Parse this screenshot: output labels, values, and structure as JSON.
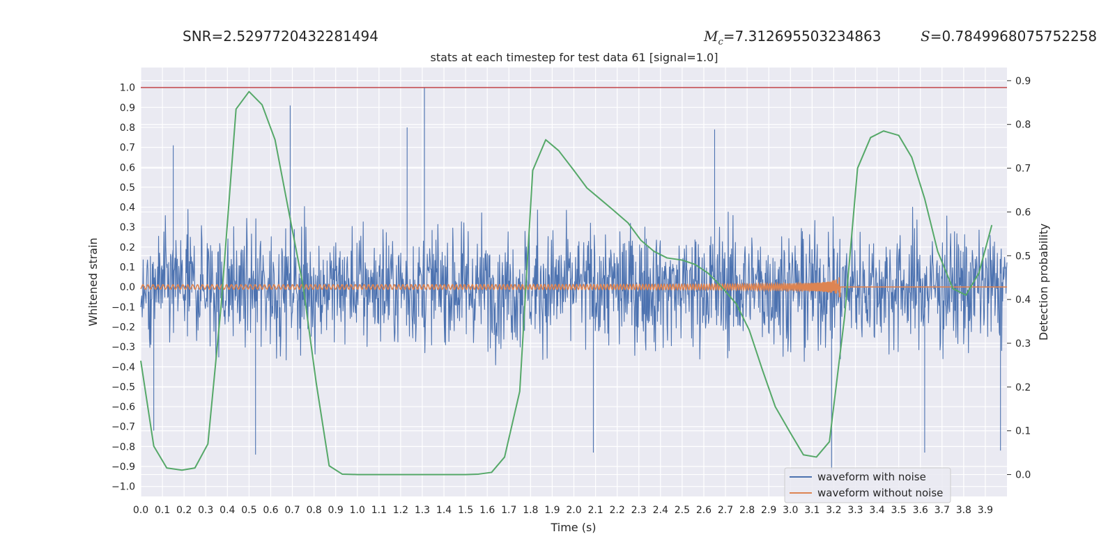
{
  "header": {
    "snr": "SNR=2.5297720432281494",
    "mc_value": "=7.312695503234863",
    "s_value": "=0.7849968075752258"
  },
  "colors": {
    "noisy": "#4c72b0",
    "clean": "#dd8452",
    "prob": "#55a868",
    "threshold": "#c44e52",
    "plot_bg": "#eaeaf2",
    "grid": "#ffffff"
  },
  "chart_data": {
    "type": "line",
    "title": "stats at each timestep for test data 61 [signal=1.0]",
    "xlabel": "Time (s)",
    "ylabel": "Whitened strain",
    "y2label": "Detection probability",
    "xlim": [
      0.0,
      4.0
    ],
    "ylim": [
      -1.05,
      1.1
    ],
    "y2lim": [
      -0.05,
      0.93
    ],
    "x_ticks": [
      0.0,
      0.1,
      0.2,
      0.3,
      0.4,
      0.5,
      0.6,
      0.7,
      0.8,
      0.9,
      1.0,
      1.1,
      1.2,
      1.3,
      1.4,
      1.5,
      1.6,
      1.7,
      1.8,
      1.9,
      2.0,
      2.1,
      2.2,
      2.3,
      2.4,
      2.5,
      2.6,
      2.7,
      2.8,
      2.9,
      3.0,
      3.1,
      3.2,
      3.3,
      3.4,
      3.5,
      3.6,
      3.7,
      3.8,
      3.9
    ],
    "x_tick_labels": [
      "0.0",
      "0.1",
      "0.2",
      "0.3",
      "0.4",
      "0.5",
      "0.6",
      "0.7",
      "0.8",
      "0.9",
      "1.0",
      "1.1",
      "1.2",
      "1.3",
      "1.4",
      "1.5",
      "1.6",
      "1.7",
      "1.8",
      "1.9",
      "2.0",
      "2.1",
      "2.2",
      "2.3",
      "2.4",
      "2.5",
      "2.6",
      "2.7",
      "2.8",
      "2.9",
      "3.0",
      "3.1",
      "3.2",
      "3.3",
      "3.4",
      "3.5",
      "3.6",
      "3.7",
      "3.8",
      "3.9"
    ],
    "y_ticks": [
      1.0,
      0.9,
      0.8,
      0.7,
      0.6,
      0.5,
      0.4,
      0.3,
      0.2,
      0.1,
      0.0,
      -0.1,
      -0.2,
      -0.3,
      -0.4,
      -0.5,
      -0.6,
      -0.7,
      -0.8,
      -0.9,
      -1.0
    ],
    "y_tick_labels": [
      "1.0",
      "0.9",
      "0.8",
      "0.7",
      "0.6",
      "0.5",
      "0.4",
      "0.3",
      "0.2",
      "0.1",
      "0.0",
      "−0.1",
      "−0.2",
      "−0.3",
      "−0.4",
      "−0.5",
      "−0.6",
      "−0.7",
      "−0.8",
      "−0.9",
      "−1.0"
    ],
    "y2_ticks": [
      0.9,
      0.8,
      0.7,
      0.6,
      0.5,
      0.4,
      0.3,
      0.2,
      0.1,
      0.0
    ],
    "y2_tick_labels": [
      "0.9",
      "0.8",
      "0.7",
      "0.6",
      "0.5",
      "0.4",
      "0.3",
      "0.2",
      "0.1",
      "0.0"
    ],
    "threshold": 1.0,
    "legend": {
      "location": "lower-right",
      "entries": [
        "waveform with noise",
        "waveform without noise"
      ]
    },
    "series": [
      {
        "name": "waveform with noise",
        "axis": "left",
        "description": "dense noisy whitened strain, roughly within -0.9 to 1.0",
        "approx_amplitude": 0.38,
        "spikes": [
          {
            "x": 0.69,
            "y": 0.91
          },
          {
            "x": 1.31,
            "y": 1.0
          },
          {
            "x": 1.23,
            "y": 0.8
          },
          {
            "x": 2.65,
            "y": 0.79
          },
          {
            "x": 3.19,
            "y": -0.92
          },
          {
            "x": 0.53,
            "y": -0.84
          },
          {
            "x": 2.09,
            "y": -0.83
          },
          {
            "x": 3.62,
            "y": -0.83
          },
          {
            "x": 3.97,
            "y": -0.82
          },
          {
            "x": 0.06,
            "y": -0.72
          },
          {
            "x": 0.15,
            "y": 0.71
          }
        ]
      },
      {
        "name": "waveform without noise",
        "axis": "left",
        "description": "chirp oscillation, amplitude grows to merger near 3.23 s then flat zero",
        "merger_time": 3.23,
        "start_amplitude": 0.01,
        "peak_amplitude": 0.055
      },
      {
        "name": "detection probability",
        "axis": "right",
        "x": [
          0.0,
          0.06,
          0.12,
          0.19,
          0.25,
          0.31,
          0.37,
          0.44,
          0.5,
          0.56,
          0.62,
          0.68,
          0.75,
          0.81,
          0.87,
          0.93,
          1.0,
          1.06,
          1.12,
          1.18,
          1.25,
          1.31,
          1.37,
          1.43,
          1.5,
          1.56,
          1.62,
          1.68,
          1.75,
          1.81,
          1.87,
          1.93,
          2.0,
          2.06,
          2.12,
          2.18,
          2.25,
          2.31,
          2.37,
          2.43,
          2.5,
          2.56,
          2.62,
          2.68,
          2.75,
          2.81,
          2.87,
          2.93,
          3.0,
          3.06,
          3.12,
          3.18,
          3.25,
          3.31,
          3.37,
          3.43,
          3.5,
          3.56,
          3.62,
          3.68,
          3.75,
          3.81,
          3.87,
          3.93
        ],
        "y": [
          0.26,
          0.065,
          0.015,
          0.01,
          0.015,
          0.07,
          0.38,
          0.835,
          0.875,
          0.845,
          0.765,
          0.61,
          0.43,
          0.21,
          0.02,
          0.001,
          0.0,
          0.0,
          0.0,
          0.0,
          0.0,
          0.0,
          0.0,
          0.0,
          0.0,
          0.001,
          0.005,
          0.04,
          0.19,
          0.695,
          0.765,
          0.74,
          0.695,
          0.655,
          0.63,
          0.605,
          0.575,
          0.535,
          0.51,
          0.495,
          0.49,
          0.48,
          0.46,
          0.43,
          0.39,
          0.33,
          0.24,
          0.155,
          0.095,
          0.045,
          0.04,
          0.075,
          0.36,
          0.7,
          0.77,
          0.785,
          0.775,
          0.725,
          0.63,
          0.51,
          0.425,
          0.41,
          0.46,
          0.57
        ]
      }
    ]
  }
}
